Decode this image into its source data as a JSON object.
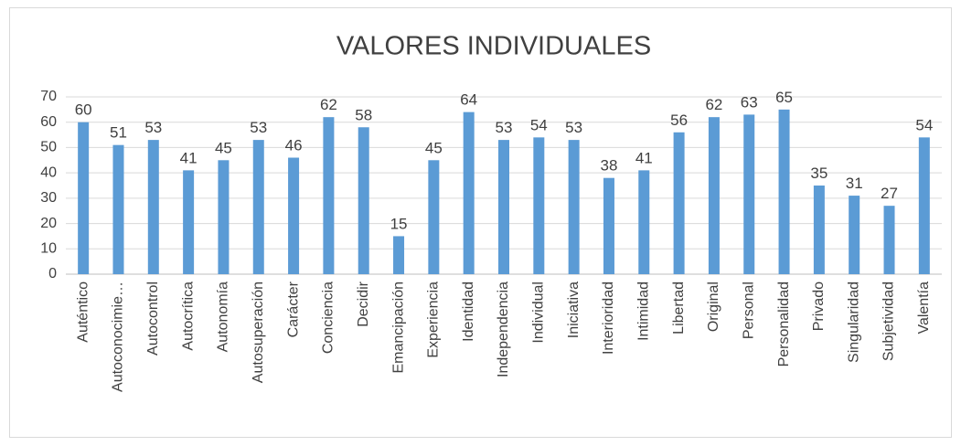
{
  "chart_data": {
    "type": "bar",
    "title": "VALORES INDIVIDUALES",
    "categories": [
      "Auténtico",
      "Autoconocimie…",
      "Autocontrol",
      "Autocrítica",
      "Autonomía",
      "Autosuperación",
      "Carácter",
      "Conciencia",
      "Decidir",
      "Emancipación",
      "Experiencia",
      "Identidad",
      "Independencia",
      "Individual",
      "Iniciativa",
      "Interioridad",
      "Intimidad",
      "Libertad",
      "Original",
      "Personal",
      "Personalidad",
      "Privado",
      "Singularidad",
      "Subjetividad",
      "Valentía"
    ],
    "values": [
      60,
      51,
      53,
      41,
      45,
      53,
      46,
      62,
      58,
      15,
      45,
      64,
      53,
      54,
      53,
      38,
      41,
      56,
      62,
      63,
      65,
      35,
      31,
      27,
      54
    ],
    "color": "#5b9bd5",
    "ylim": [
      0,
      70
    ],
    "yticks": [
      0,
      10,
      20,
      30,
      40,
      50,
      60,
      70
    ],
    "grid": true
  }
}
